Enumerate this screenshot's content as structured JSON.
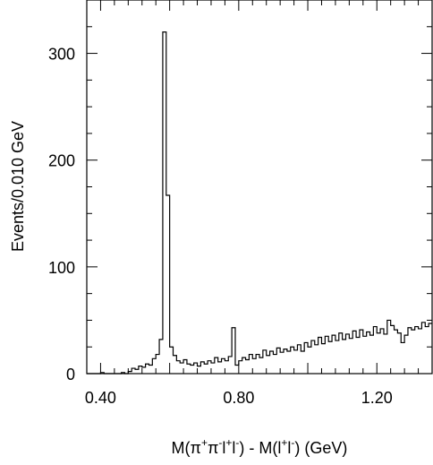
{
  "chart_data": {
    "type": "bar",
    "ylabel": "Events/0.010 GeV",
    "xlabel_parts": {
      "p1": "M(",
      "p2": "π",
      "p3": "+",
      "p4": "π",
      "p5": "-",
      "p6": "l",
      "p7": "+",
      "p8": "l",
      "p9": "-",
      "p10": ") - M(",
      "p11": "l",
      "p12": "+",
      "p13": "l",
      "p14": "-",
      "p15": ") (GeV)"
    },
    "xlim": [
      0.36,
      1.36
    ],
    "ylim": [
      0,
      350
    ],
    "bin_width": 0.01,
    "x_ticks": [
      0.4,
      0.8,
      1.2
    ],
    "x_tick_labels": [
      "0.40",
      "0.80",
      "1.20"
    ],
    "y_ticks": [
      0,
      100,
      200,
      300
    ],
    "y_tick_labels": [
      "0",
      "100",
      "200",
      "300"
    ],
    "grid": false,
    "legend": "none",
    "bins": [
      {
        "x": 0.36,
        "y": 0
      },
      {
        "x": 0.37,
        "y": 0
      },
      {
        "x": 0.38,
        "y": 0
      },
      {
        "x": 0.39,
        "y": 0
      },
      {
        "x": 0.4,
        "y": 1
      },
      {
        "x": 0.41,
        "y": 0
      },
      {
        "x": 0.42,
        "y": 0
      },
      {
        "x": 0.43,
        "y": 0
      },
      {
        "x": 0.44,
        "y": 0
      },
      {
        "x": 0.45,
        "y": 0
      },
      {
        "x": 0.46,
        "y": 1
      },
      {
        "x": 0.47,
        "y": 0
      },
      {
        "x": 0.48,
        "y": 2
      },
      {
        "x": 0.49,
        "y": 5
      },
      {
        "x": 0.5,
        "y": 4
      },
      {
        "x": 0.51,
        "y": 7
      },
      {
        "x": 0.52,
        "y": 6
      },
      {
        "x": 0.53,
        "y": 9
      },
      {
        "x": 0.54,
        "y": 8
      },
      {
        "x": 0.55,
        "y": 14
      },
      {
        "x": 0.56,
        "y": 18
      },
      {
        "x": 0.57,
        "y": 32
      },
      {
        "x": 0.58,
        "y": 320
      },
      {
        "x": 0.59,
        "y": 167
      },
      {
        "x": 0.6,
        "y": 25
      },
      {
        "x": 0.61,
        "y": 17
      },
      {
        "x": 0.62,
        "y": 12
      },
      {
        "x": 0.63,
        "y": 10
      },
      {
        "x": 0.64,
        "y": 13
      },
      {
        "x": 0.65,
        "y": 9
      },
      {
        "x": 0.66,
        "y": 8
      },
      {
        "x": 0.67,
        "y": 10
      },
      {
        "x": 0.68,
        "y": 7
      },
      {
        "x": 0.69,
        "y": 11
      },
      {
        "x": 0.7,
        "y": 9
      },
      {
        "x": 0.71,
        "y": 12
      },
      {
        "x": 0.72,
        "y": 10
      },
      {
        "x": 0.73,
        "y": 15
      },
      {
        "x": 0.74,
        "y": 11
      },
      {
        "x": 0.75,
        "y": 14
      },
      {
        "x": 0.76,
        "y": 12
      },
      {
        "x": 0.77,
        "y": 16
      },
      {
        "x": 0.78,
        "y": 43
      },
      {
        "x": 0.79,
        "y": 8
      },
      {
        "x": 0.8,
        "y": 12
      },
      {
        "x": 0.81,
        "y": 15
      },
      {
        "x": 0.82,
        "y": 13
      },
      {
        "x": 0.83,
        "y": 18
      },
      {
        "x": 0.84,
        "y": 14
      },
      {
        "x": 0.85,
        "y": 18
      },
      {
        "x": 0.86,
        "y": 15
      },
      {
        "x": 0.87,
        "y": 22
      },
      {
        "x": 0.88,
        "y": 17
      },
      {
        "x": 0.89,
        "y": 21
      },
      {
        "x": 0.9,
        "y": 18
      },
      {
        "x": 0.91,
        "y": 24
      },
      {
        "x": 0.92,
        "y": 20
      },
      {
        "x": 0.93,
        "y": 23
      },
      {
        "x": 0.94,
        "y": 21
      },
      {
        "x": 0.95,
        "y": 25
      },
      {
        "x": 0.96,
        "y": 22
      },
      {
        "x": 0.97,
        "y": 27
      },
      {
        "x": 0.98,
        "y": 21
      },
      {
        "x": 0.99,
        "y": 29
      },
      {
        "x": 1.0,
        "y": 25
      },
      {
        "x": 1.01,
        "y": 31
      },
      {
        "x": 1.02,
        "y": 27
      },
      {
        "x": 1.03,
        "y": 34
      },
      {
        "x": 1.04,
        "y": 28
      },
      {
        "x": 1.05,
        "y": 35
      },
      {
        "x": 1.06,
        "y": 30
      },
      {
        "x": 1.07,
        "y": 36
      },
      {
        "x": 1.08,
        "y": 31
      },
      {
        "x": 1.09,
        "y": 38
      },
      {
        "x": 1.1,
        "y": 32
      },
      {
        "x": 1.11,
        "y": 37
      },
      {
        "x": 1.12,
        "y": 33
      },
      {
        "x": 1.13,
        "y": 40
      },
      {
        "x": 1.14,
        "y": 34
      },
      {
        "x": 1.15,
        "y": 41
      },
      {
        "x": 1.16,
        "y": 35
      },
      {
        "x": 1.17,
        "y": 39
      },
      {
        "x": 1.18,
        "y": 36
      },
      {
        "x": 1.19,
        "y": 44
      },
      {
        "x": 1.2,
        "y": 38
      },
      {
        "x": 1.21,
        "y": 42
      },
      {
        "x": 1.22,
        "y": 37
      },
      {
        "x": 1.23,
        "y": 50
      },
      {
        "x": 1.24,
        "y": 45
      },
      {
        "x": 1.25,
        "y": 41
      },
      {
        "x": 1.26,
        "y": 38
      },
      {
        "x": 1.27,
        "y": 29
      },
      {
        "x": 1.28,
        "y": 36
      },
      {
        "x": 1.29,
        "y": 43
      },
      {
        "x": 1.3,
        "y": 41
      },
      {
        "x": 1.31,
        "y": 44
      },
      {
        "x": 1.32,
        "y": 42
      },
      {
        "x": 1.33,
        "y": 48
      },
      {
        "x": 1.34,
        "y": 44
      },
      {
        "x": 1.35,
        "y": 47
      }
    ]
  }
}
